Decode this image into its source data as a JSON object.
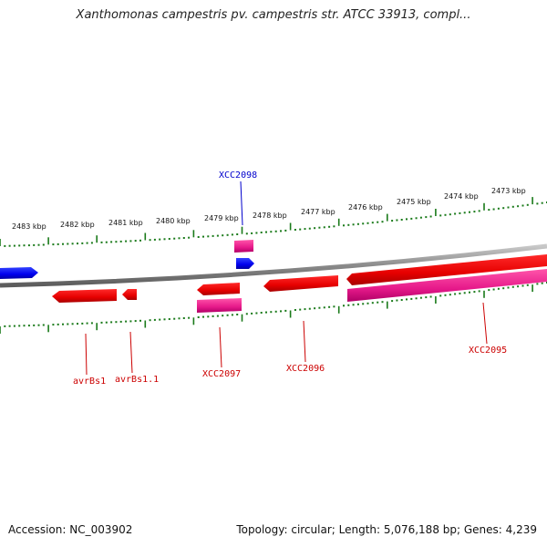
{
  "title": "Xanthomonas campestris pv. campestris str. ATCC 33913, compl...",
  "footer": {
    "accession": "Accession: NC_003902",
    "topology": "Topology: circular; Length: 5,076,188 bp; Genes: 4,239"
  },
  "ruler": {
    "unit": "kbp",
    "labels": [
      "2483 kbp",
      "2482 kbp",
      "2481 kbp",
      "2480 kbp",
      "2479 kbp",
      "2478 kbp",
      "2477 kbp",
      "2476 kbp",
      "2475 kbp",
      "2474 kbp",
      "2473 kbp"
    ]
  },
  "genes": [
    {
      "name": "avrBs1",
      "color": "#dd0000"
    },
    {
      "name": "avrBs1.1",
      "color": "#dd0000"
    },
    {
      "name": "XCC2097",
      "color": "#dd0000"
    },
    {
      "name": "XCC2096",
      "color": "#dd0000"
    },
    {
      "name": "XCC2095",
      "color": "#dd0000"
    },
    {
      "name": "XCC2098",
      "color": "#0000cc"
    }
  ],
  "colors": {
    "forward_cds": "#0000ff",
    "reverse_cds": "#ff0000",
    "gene_magenta": "#ff3399",
    "tick": "#1a7a1a",
    "backbone": "#8c8c8c"
  }
}
